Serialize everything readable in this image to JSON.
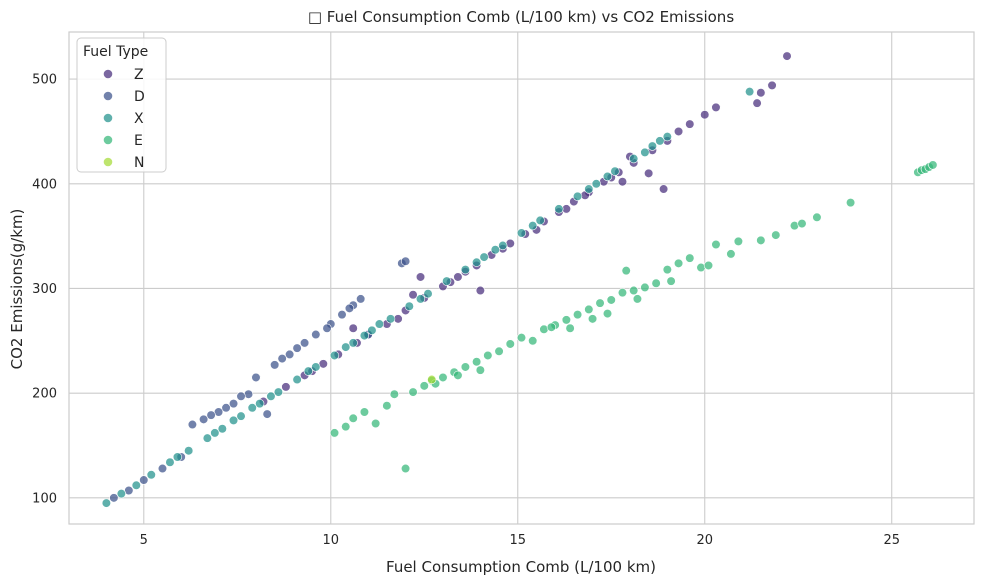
{
  "chart_data": {
    "type": "scatter",
    "title": "□ Fuel Consumption Comb (L/100 km) vs CO2 Emissions",
    "xlabel": "Fuel Consumption Comb (L/100 km)",
    "ylabel": "CO2 Emissions(g/km)",
    "xlim": [
      3,
      27.2
    ],
    "ylim": [
      75,
      545
    ],
    "xticks": [
      5,
      10,
      15,
      20,
      25
    ],
    "yticks": [
      100,
      200,
      300,
      400,
      500
    ],
    "grid": true,
    "legend": {
      "title": "Fuel Type",
      "position": "top-left"
    },
    "series": [
      {
        "name": "Z",
        "color": "#472d7b",
        "points": [
          [
            8.2,
            192
          ],
          [
            8.8,
            206
          ],
          [
            9.3,
            217
          ],
          [
            9.8,
            228
          ],
          [
            10.2,
            237
          ],
          [
            10.7,
            248
          ],
          [
            11.0,
            256
          ],
          [
            11.5,
            266
          ],
          [
            12.0,
            279
          ],
          [
            12.5,
            291
          ],
          [
            13.0,
            302
          ],
          [
            13.4,
            311
          ],
          [
            13.9,
            322
          ],
          [
            14.3,
            332
          ],
          [
            14.8,
            343
          ],
          [
            15.2,
            352
          ],
          [
            15.7,
            364
          ],
          [
            16.1,
            373
          ],
          [
            16.5,
            383
          ],
          [
            16.9,
            392
          ],
          [
            17.3,
            402
          ],
          [
            17.7,
            411
          ],
          [
            18.1,
            420
          ],
          [
            18.6,
            432
          ],
          [
            19.0,
            441
          ],
          [
            19.3,
            450
          ],
          [
            19.6,
            457
          ],
          [
            20.0,
            466
          ],
          [
            20.3,
            473
          ],
          [
            21.4,
            477
          ],
          [
            21.5,
            487
          ],
          [
            21.8,
            494
          ],
          [
            22.2,
            522
          ],
          [
            12.2,
            294
          ],
          [
            14.0,
            298
          ],
          [
            17.8,
            402
          ],
          [
            18.5,
            410
          ],
          [
            18.9,
            395
          ],
          [
            12.4,
            311
          ],
          [
            10.6,
            262
          ],
          [
            9.5,
            221
          ],
          [
            13.2,
            306
          ],
          [
            15.5,
            356
          ],
          [
            16.3,
            376
          ],
          [
            17.5,
            406
          ],
          [
            11.8,
            271
          ],
          [
            14.6,
            338
          ],
          [
            16.8,
            389
          ],
          [
            13.6,
            316
          ],
          [
            18.0,
            426
          ]
        ]
      },
      {
        "name": "D",
        "color": "#3b528b",
        "points": [
          [
            4.2,
            100
          ],
          [
            4.6,
            107
          ],
          [
            5.0,
            117
          ],
          [
            5.5,
            128
          ],
          [
            6.0,
            139
          ],
          [
            6.6,
            175
          ],
          [
            7.0,
            182
          ],
          [
            7.4,
            190
          ],
          [
            7.8,
            199
          ],
          [
            8.0,
            215
          ],
          [
            8.5,
            227
          ],
          [
            8.9,
            237
          ],
          [
            9.3,
            248
          ],
          [
            9.6,
            256
          ],
          [
            10.0,
            266
          ],
          [
            10.3,
            275
          ],
          [
            10.6,
            284
          ],
          [
            10.8,
            290
          ],
          [
            11.9,
            324
          ],
          [
            12.0,
            326
          ],
          [
            6.3,
            170
          ],
          [
            7.6,
            197
          ],
          [
            8.7,
            233
          ],
          [
            9.9,
            262
          ],
          [
            10.5,
            281
          ],
          [
            11.0,
            256
          ],
          [
            8.3,
            180
          ],
          [
            7.2,
            186
          ],
          [
            9.1,
            243
          ],
          [
            6.8,
            179
          ]
        ]
      },
      {
        "name": "X",
        "color": "#21918c",
        "points": [
          [
            4.0,
            95
          ],
          [
            4.4,
            104
          ],
          [
            4.8,
            112
          ],
          [
            5.2,
            122
          ],
          [
            5.7,
            134
          ],
          [
            6.2,
            145
          ],
          [
            6.7,
            157
          ],
          [
            7.1,
            166
          ],
          [
            7.6,
            178
          ],
          [
            8.1,
            190
          ],
          [
            8.6,
            201
          ],
          [
            9.1,
            213
          ],
          [
            9.6,
            225
          ],
          [
            10.1,
            236
          ],
          [
            10.6,
            248
          ],
          [
            11.1,
            260
          ],
          [
            11.6,
            271
          ],
          [
            12.1,
            283
          ],
          [
            12.6,
            295
          ],
          [
            13.1,
            307
          ],
          [
            13.6,
            318
          ],
          [
            14.1,
            330
          ],
          [
            14.6,
            341
          ],
          [
            15.1,
            353
          ],
          [
            15.6,
            365
          ],
          [
            16.1,
            376
          ],
          [
            16.6,
            388
          ],
          [
            17.1,
            400
          ],
          [
            17.6,
            412
          ],
          [
            18.1,
            424
          ],
          [
            18.6,
            436
          ],
          [
            19.0,
            445
          ],
          [
            21.2,
            488
          ],
          [
            7.9,
            186
          ],
          [
            9.4,
            221
          ],
          [
            10.9,
            255
          ],
          [
            12.4,
            290
          ],
          [
            13.9,
            325
          ],
          [
            15.4,
            360
          ],
          [
            16.9,
            395
          ],
          [
            18.4,
            430
          ],
          [
            5.9,
            139
          ],
          [
            6.9,
            162
          ],
          [
            7.4,
            174
          ],
          [
            11.3,
            266
          ],
          [
            14.4,
            337
          ],
          [
            17.4,
            407
          ],
          [
            18.8,
            441
          ],
          [
            8.4,
            197
          ],
          [
            10.4,
            244
          ]
        ]
      },
      {
        "name": "E",
        "color": "#35b779",
        "points": [
          [
            10.1,
            162
          ],
          [
            10.4,
            168
          ],
          [
            10.6,
            176
          ],
          [
            10.9,
            182
          ],
          [
            11.2,
            171
          ],
          [
            11.5,
            188
          ],
          [
            11.7,
            199
          ],
          [
            12.0,
            128
          ],
          [
            12.2,
            201
          ],
          [
            12.5,
            207
          ],
          [
            12.7,
            212
          ],
          [
            13.0,
            215
          ],
          [
            13.3,
            220
          ],
          [
            13.6,
            225
          ],
          [
            13.9,
            230
          ],
          [
            14.2,
            236
          ],
          [
            14.5,
            240
          ],
          [
            14.8,
            247
          ],
          [
            15.1,
            253
          ],
          [
            15.4,
            250
          ],
          [
            15.7,
            261
          ],
          [
            16.0,
            265
          ],
          [
            16.3,
            270
          ],
          [
            16.6,
            275
          ],
          [
            16.9,
            280
          ],
          [
            17.2,
            286
          ],
          [
            17.5,
            289
          ],
          [
            17.8,
            296
          ],
          [
            17.9,
            317
          ],
          [
            18.1,
            298
          ],
          [
            18.4,
            301
          ],
          [
            18.7,
            305
          ],
          [
            19.0,
            318
          ],
          [
            19.3,
            324
          ],
          [
            19.6,
            329
          ],
          [
            19.9,
            320
          ],
          [
            20.3,
            342
          ],
          [
            20.7,
            333
          ],
          [
            20.9,
            345
          ],
          [
            21.5,
            346
          ],
          [
            21.9,
            351
          ],
          [
            22.4,
            360
          ],
          [
            22.6,
            362
          ],
          [
            23.0,
            368
          ],
          [
            23.9,
            382
          ],
          [
            25.7,
            411
          ],
          [
            25.8,
            413
          ],
          [
            25.9,
            414
          ],
          [
            26.0,
            416
          ],
          [
            26.1,
            418
          ],
          [
            15.9,
            263
          ],
          [
            16.4,
            262
          ],
          [
            17.0,
            271
          ],
          [
            17.4,
            276
          ],
          [
            14.0,
            222
          ],
          [
            13.4,
            217
          ],
          [
            12.8,
            209
          ],
          [
            18.2,
            290
          ],
          [
            19.1,
            307
          ],
          [
            20.1,
            322
          ]
        ]
      },
      {
        "name": "N",
        "color": "#a5db36",
        "points": [
          [
            12.7,
            213
          ]
        ]
      }
    ]
  }
}
